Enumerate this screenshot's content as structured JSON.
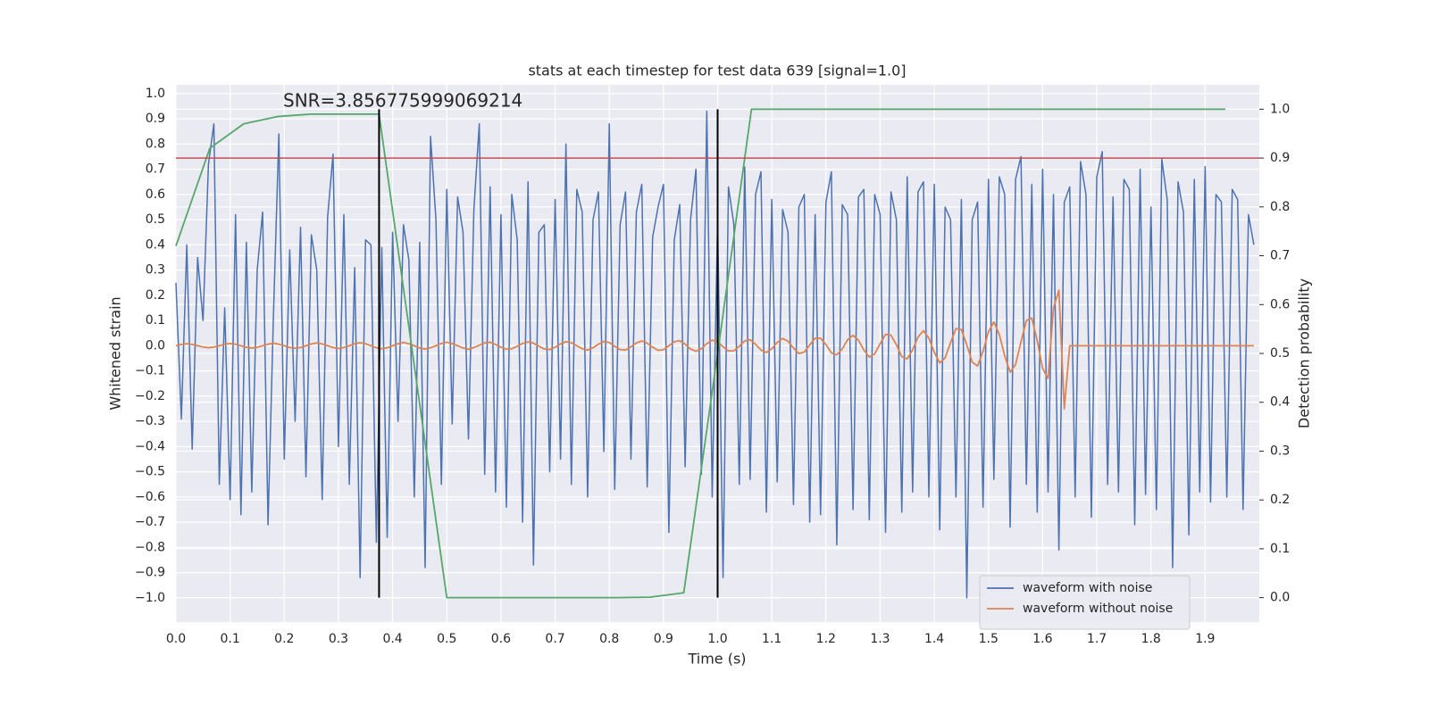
{
  "chart_data": {
    "type": "line",
    "title": "stats at each timestep for test data 639 [signal=1.0]",
    "xlabel": "Time (s)",
    "ylabel": "Whitened strain",
    "y2label": "Detection probability",
    "annotation": "SNR=3.856775999069214",
    "xlim": [
      0,
      2.0
    ],
    "ylim": [
      -1.096,
      1.035
    ],
    "y2lim": [
      -0.05,
      1.05
    ],
    "grid": true,
    "legend": "lower right",
    "xticks": [
      {
        "value": 0,
        "label": "0.0"
      },
      {
        "value": 0.1,
        "label": "0.1"
      },
      {
        "value": 0.2,
        "label": "0.2"
      },
      {
        "value": 0.3,
        "label": "0.3"
      },
      {
        "value": 0.4,
        "label": "0.4"
      },
      {
        "value": 0.5,
        "label": "0.5"
      },
      {
        "value": 0.6,
        "label": "0.6"
      },
      {
        "value": 0.7,
        "label": "0.7"
      },
      {
        "value": 0.8,
        "label": "0.8"
      },
      {
        "value": 0.9,
        "label": "0.9"
      },
      {
        "value": 1,
        "label": "1.0"
      },
      {
        "value": 1.1,
        "label": "1.1"
      },
      {
        "value": 1.2,
        "label": "1.2"
      },
      {
        "value": 1.3,
        "label": "1.3"
      },
      {
        "value": 1.4,
        "label": "1.4"
      },
      {
        "value": 1.5,
        "label": "1.5"
      },
      {
        "value": 1.6,
        "label": "1.6"
      },
      {
        "value": 1.7,
        "label": "1.7"
      },
      {
        "value": 1.8,
        "label": "1.8"
      },
      {
        "value": 1.9,
        "label": "1.9"
      }
    ],
    "yticks": [
      {
        "value": -1,
        "label": "−1.0"
      },
      {
        "value": -0.9,
        "label": "−0.9"
      },
      {
        "value": -0.8,
        "label": "−0.8"
      },
      {
        "value": -0.7,
        "label": "−0.7"
      },
      {
        "value": -0.6,
        "label": "−0.6"
      },
      {
        "value": -0.5,
        "label": "−0.5"
      },
      {
        "value": -0.4,
        "label": "−0.4"
      },
      {
        "value": -0.3,
        "label": "−0.3"
      },
      {
        "value": -0.2,
        "label": "−0.2"
      },
      {
        "value": -0.1,
        "label": "−0.1"
      },
      {
        "value": 0,
        "label": "0.0"
      },
      {
        "value": 0.1,
        "label": "0.1"
      },
      {
        "value": 0.2,
        "label": "0.2"
      },
      {
        "value": 0.3,
        "label": "0.3"
      },
      {
        "value": 0.4,
        "label": "0.4"
      },
      {
        "value": 0.5,
        "label": "0.5"
      },
      {
        "value": 0.6,
        "label": "0.6"
      },
      {
        "value": 0.7,
        "label": "0.7"
      },
      {
        "value": 0.8,
        "label": "0.8"
      },
      {
        "value": 0.9,
        "label": "0.9"
      },
      {
        "value": 1,
        "label": "1.0"
      }
    ],
    "y2ticks": [
      {
        "value": 0,
        "label": "0.0"
      },
      {
        "value": 0.1,
        "label": "0.1"
      },
      {
        "value": 0.2,
        "label": "0.2"
      },
      {
        "value": 0.3,
        "label": "0.3"
      },
      {
        "value": 0.4,
        "label": "0.4"
      },
      {
        "value": 0.5,
        "label": "0.5"
      },
      {
        "value": 0.6,
        "label": "0.6"
      },
      {
        "value": 0.7,
        "label": "0.7"
      },
      {
        "value": 0.8,
        "label": "0.8"
      },
      {
        "value": 0.9,
        "label": "0.9"
      },
      {
        "value": 1,
        "label": "1.0"
      }
    ],
    "x": [
      0,
      0.01,
      0.02,
      0.03,
      0.04,
      0.05,
      0.06,
      0.07,
      0.08,
      0.09,
      0.1,
      0.11,
      0.12,
      0.13,
      0.14,
      0.15,
      0.16,
      0.17,
      0.18,
      0.19,
      0.2,
      0.21,
      0.22,
      0.23,
      0.24,
      0.25,
      0.26,
      0.27,
      0.28,
      0.29,
      0.3,
      0.31,
      0.32,
      0.33,
      0.34,
      0.35,
      0.36,
      0.37,
      0.38,
      0.39,
      0.4,
      0.41,
      0.42,
      0.43,
      0.44,
      0.45,
      0.46,
      0.47,
      0.48,
      0.49,
      0.5,
      0.51,
      0.52,
      0.53,
      0.54,
      0.55,
      0.56,
      0.57,
      0.58,
      0.59,
      0.6,
      0.61,
      0.62,
      0.63,
      0.64,
      0.65,
      0.66,
      0.67,
      0.68,
      0.69,
      0.7,
      0.71,
      0.72,
      0.73,
      0.74,
      0.75,
      0.76,
      0.77,
      0.78,
      0.79,
      0.8,
      0.81,
      0.82,
      0.83,
      0.84,
      0.85,
      0.86,
      0.87,
      0.88,
      0.89,
      0.9,
      0.91,
      0.92,
      0.93,
      0.94,
      0.95,
      0.96,
      0.97,
      0.98,
      0.99,
      1,
      1.01,
      1.02,
      1.03,
      1.04,
      1.05,
      1.06,
      1.07,
      1.08,
      1.09,
      1.1,
      1.11,
      1.12,
      1.13,
      1.14,
      1.15,
      1.16,
      1.17,
      1.18,
      1.19,
      1.2,
      1.21,
      1.22,
      1.23,
      1.24,
      1.25,
      1.26,
      1.27,
      1.28,
      1.29,
      1.3,
      1.31,
      1.32,
      1.33,
      1.34,
      1.35,
      1.36,
      1.37,
      1.38,
      1.39,
      1.4,
      1.41,
      1.42,
      1.43,
      1.44,
      1.45,
      1.46,
      1.47,
      1.48,
      1.49,
      1.5,
      1.51,
      1.52,
      1.53,
      1.54,
      1.55,
      1.56,
      1.57,
      1.58,
      1.59,
      1.6,
      1.61,
      1.62,
      1.63,
      1.64,
      1.65,
      1.66,
      1.67,
      1.68,
      1.69,
      1.7,
      1.71,
      1.72,
      1.73,
      1.74,
      1.75,
      1.76,
      1.77,
      1.78,
      1.79,
      1.8,
      1.81,
      1.82,
      1.83,
      1.84,
      1.85,
      1.86,
      1.87,
      1.88,
      1.89,
      1.9,
      1.91,
      1.92,
      1.93,
      1.94,
      1.95,
      1.96,
      1.97,
      1.98,
      1.99
    ],
    "series": [
      {
        "name": "waveform with noise",
        "color": "#4c72b0",
        "values": [
          0.25,
          -0.29,
          0.4,
          -0.41,
          0.35,
          0.1,
          0.72,
          0.88,
          -0.55,
          0.15,
          -0.61,
          0.52,
          -0.67,
          0.41,
          -0.58,
          0.3,
          0.53,
          -0.71,
          0.12,
          0.84,
          -0.45,
          0.38,
          -0.3,
          0.47,
          -0.52,
          0.44,
          0.3,
          -0.61,
          0.51,
          0.76,
          -0.4,
          0.52,
          -0.55,
          0.31,
          -0.92,
          0.42,
          0.4,
          -0.78,
          0.39,
          -0.76,
          0.45,
          -0.3,
          0.48,
          0.34,
          -0.6,
          0.41,
          -0.88,
          0.83,
          0.5,
          -0.55,
          0.62,
          -0.31,
          0.59,
          0.45,
          -0.37,
          0.54,
          0.88,
          -0.51,
          0.63,
          -0.58,
          0.52,
          -0.64,
          0.6,
          0.42,
          -0.7,
          0.65,
          -0.87,
          0.45,
          0.48,
          -0.5,
          0.58,
          -0.45,
          0.8,
          -0.55,
          0.62,
          0.53,
          -0.6,
          0.5,
          0.61,
          -0.42,
          0.88,
          -0.57,
          0.48,
          0.61,
          -0.45,
          0.53,
          0.64,
          -0.56,
          0.43,
          0.55,
          0.64,
          -0.74,
          0.42,
          0.56,
          -0.48,
          0.5,
          0.7,
          -0.51,
          0.93,
          -0.6,
          0.5,
          -0.92,
          0.63,
          0.48,
          -0.55,
          0.71,
          -0.53,
          0.6,
          0.69,
          -0.66,
          0.58,
          -0.54,
          0.54,
          0.45,
          -0.63,
          0.55,
          0.6,
          -0.7,
          0.52,
          -0.67,
          0.57,
          0.69,
          -0.79,
          0.56,
          0.52,
          -0.65,
          0.59,
          0.62,
          -0.69,
          0.6,
          0.52,
          -0.74,
          0.61,
          0.5,
          -0.66,
          0.67,
          -0.58,
          0.61,
          0.65,
          -0.6,
          0.64,
          -0.73,
          0.55,
          0.5,
          -0.6,
          0.58,
          -1.0,
          0.5,
          0.57,
          -0.64,
          0.66,
          -0.53,
          0.67,
          0.6,
          -0.72,
          0.66,
          0.75,
          -0.55,
          0.64,
          -0.66,
          0.7,
          -0.58,
          0.6,
          -0.81,
          0.57,
          0.63,
          -0.6,
          0.73,
          0.6,
          -0.68,
          0.67,
          0.77,
          -0.55,
          0.59,
          -0.58,
          0.66,
          0.62,
          -0.71,
          0.7,
          -0.59,
          0.55,
          -0.65,
          0.74,
          0.58,
          -0.88,
          0.65,
          0.53,
          -0.75,
          0.66,
          -0.58,
          0.71,
          -0.62,
          0.6,
          0.57,
          -0.6,
          0.62,
          0.58,
          -0.65,
          0.52,
          0.4
        ]
      },
      {
        "name": "waveform without noise",
        "color": "#dd8452",
        "values": [
          0.0,
          0.005,
          0.008,
          0.005,
          0.0,
          -0.005,
          -0.008,
          -0.005,
          0.0,
          0.006,
          0.009,
          0.006,
          0.0,
          -0.006,
          -0.009,
          -0.006,
          0.0,
          0.006,
          0.01,
          0.006,
          0.0,
          -0.007,
          -0.01,
          -0.007,
          0.0,
          0.007,
          0.011,
          0.007,
          0.0,
          -0.007,
          -0.011,
          -0.007,
          0.0,
          0.008,
          0.012,
          0.008,
          0.0,
          -0.008,
          -0.012,
          -0.008,
          0.0,
          0.008,
          0.013,
          0.008,
          0.0,
          -0.009,
          -0.013,
          -0.008,
          0.0,
          0.009,
          0.014,
          0.008,
          0.0,
          -0.009,
          -0.014,
          -0.007,
          0.002,
          0.011,
          0.014,
          0.005,
          -0.006,
          -0.014,
          -0.012,
          -0.002,
          0.009,
          0.015,
          0.01,
          -0.002,
          -0.013,
          -0.015,
          -0.006,
          0.007,
          0.016,
          0.012,
          0.0,
          -0.012,
          -0.017,
          -0.008,
          0.006,
          0.017,
          0.013,
          -0.002,
          -0.015,
          -0.017,
          -0.004,
          0.011,
          0.019,
          0.01,
          -0.006,
          -0.018,
          -0.016,
          0.0,
          0.016,
          0.02,
          0.006,
          -0.013,
          -0.022,
          -0.012,
          0.008,
          0.022,
          0.016,
          -0.004,
          -0.021,
          -0.02,
          -0.002,
          0.019,
          0.024,
          0.006,
          -0.017,
          -0.027,
          -0.012,
          0.013,
          0.029,
          0.018,
          -0.009,
          -0.031,
          -0.025,
          0.003,
          0.03,
          0.03,
          0.005,
          -0.028,
          -0.036,
          -0.013,
          0.024,
          0.041,
          0.022,
          -0.017,
          -0.045,
          -0.032,
          0.008,
          0.045,
          0.042,
          0.004,
          -0.043,
          -0.052,
          -0.016,
          0.035,
          0.06,
          0.03,
          -0.026,
          -0.068,
          -0.048,
          0.012,
          0.068,
          0.064,
          0.003,
          -0.065,
          -0.08,
          -0.022,
          0.056,
          0.094,
          0.045,
          -0.04,
          -0.105,
          -0.075,
          0.015,
          0.1,
          0.11,
          0.02,
          -0.09,
          -0.13,
          0.15,
          0.22,
          -0.25,
          0.0,
          0.0,
          0.0,
          0.0,
          0.0,
          0.0,
          0.0,
          0.0,
          0.0,
          0.0,
          0.0,
          0.0,
          0.0,
          0.0,
          0.0,
          0.0,
          0.0,
          0.0,
          0.0,
          0.0,
          0.0,
          0.0,
          0.0,
          0.0,
          0.0,
          0.0,
          0.0,
          0.0,
          0.0,
          0.0,
          0.0,
          0.0,
          0.0,
          0.0,
          0.0
        ]
      },
      {
        "color": "#55a868",
        "axis": "y2",
        "x": [
          0,
          0.0625,
          0.125,
          0.1875,
          0.25,
          0.3125,
          0.375,
          0.4375,
          0.5,
          0.5625,
          0.625,
          0.6875,
          0.75,
          0.8125,
          0.875,
          0.9375,
          1.0,
          1.0625,
          1.125,
          1.1875,
          1.25,
          1.3125,
          1.375,
          1.4375,
          1.5,
          1.5625,
          1.625,
          1.6875,
          1.75,
          1.8125,
          1.875,
          1.9375
        ],
        "values": [
          0.72,
          0.92,
          0.97,
          0.985,
          0.99,
          0.99,
          0.99,
          0.495,
          0.0,
          0.0,
          0.0,
          0.0,
          0.0,
          0.0,
          0.001,
          0.01,
          0.5,
          1.0,
          1.0,
          1.0,
          1.0,
          1.0,
          1.0,
          1.0,
          1.0,
          1.0,
          1.0,
          1.0,
          1.0,
          1.0,
          1.0,
          1.0
        ]
      }
    ],
    "hline": {
      "value": 0.9,
      "axis": "y2",
      "color": "#c44e52"
    },
    "vlines": {
      "x": [
        0.375,
        1.0
      ],
      "ymin": 0,
      "ymax": 1,
      "axis": "y2",
      "color": "#000000"
    }
  }
}
